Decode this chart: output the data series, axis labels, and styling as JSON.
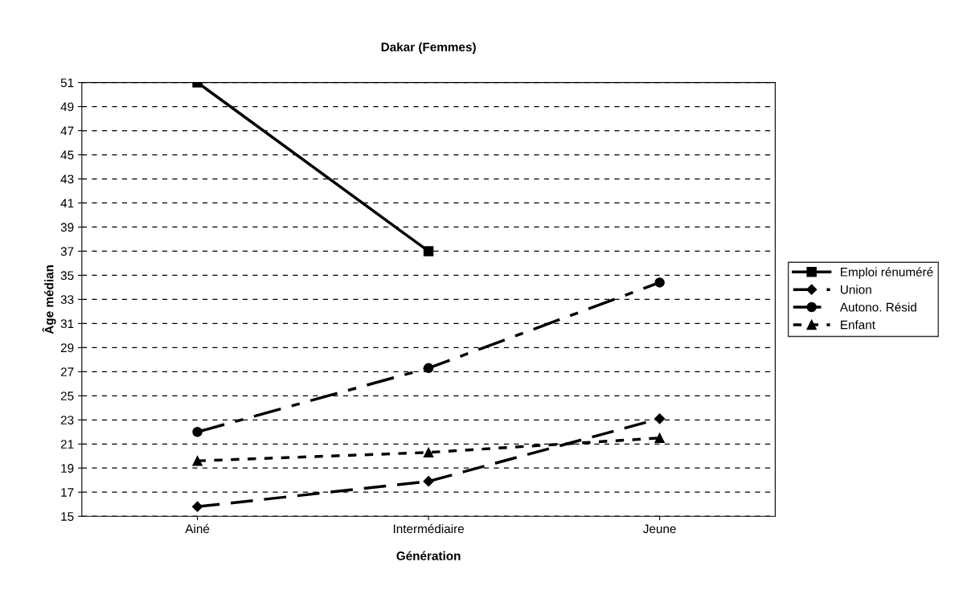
{
  "chart_data": {
    "type": "line",
    "title": "Dakar (Femmes)",
    "xlabel": "Génération",
    "ylabel": "Âge médian",
    "categories": [
      "Ainé",
      "Intermédiaire",
      "Jeune"
    ],
    "series": [
      {
        "name": "Emploi rénuméré",
        "color": "#000000",
        "values": [
          51,
          37,
          null
        ],
        "marker": "square",
        "line_style": "solid"
      },
      {
        "name": "Union",
        "color": "#000000",
        "values": [
          15.8,
          17.9,
          23.1
        ],
        "marker": "diamond",
        "line_style": "dashed"
      },
      {
        "name": "Autono. Résid",
        "color": "#000000",
        "values": [
          22,
          27.3,
          34.4
        ],
        "marker": "circle",
        "line_style": "dashdot"
      },
      {
        "name": "Enfant",
        "color": "#000000",
        "values": [
          19.6,
          20.3,
          21.5
        ],
        "marker": "triangle",
        "line_style": "dotted"
      }
    ],
    "ylim": [
      15,
      51
    ],
    "yticks": [
      15,
      17,
      19,
      21,
      23,
      25,
      27,
      29,
      31,
      33,
      35,
      37,
      39,
      41,
      43,
      45,
      47,
      49,
      51
    ],
    "grid": "y",
    "legend": "right"
  }
}
